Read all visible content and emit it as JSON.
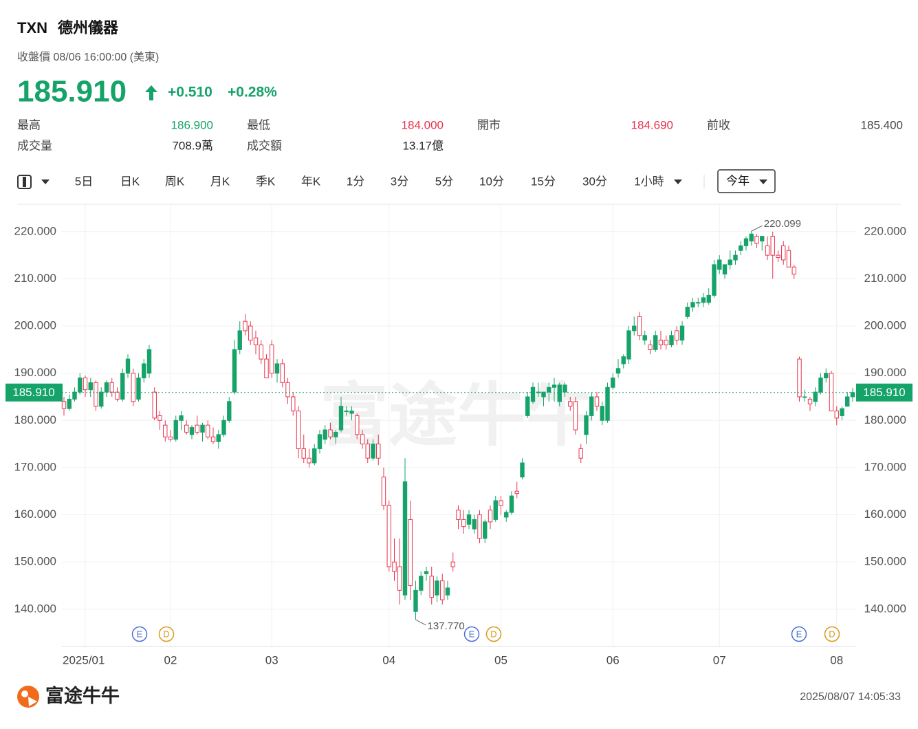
{
  "header": {
    "ticker": "TXN",
    "name": "德州儀器",
    "status": "收盤價 08/06 16:00:00 (美東)",
    "price": "185.910",
    "change": "+0.510",
    "change_pct": "+0.28%"
  },
  "stats": [
    {
      "label": "最高",
      "value": "186.900",
      "color": "#16a36a"
    },
    {
      "label": "最低",
      "value": "184.000",
      "color": "#e8344d"
    },
    {
      "label": "開市",
      "value": "184.690",
      "color": "#e8344d"
    },
    {
      "label": "前收",
      "value": "185.400",
      "color": "#444444"
    },
    {
      "label": "成交量",
      "value": "708.9萬",
      "color": "#222222"
    },
    {
      "label": "成交額",
      "value": "13.17億",
      "color": "#222222"
    }
  ],
  "toolbar": {
    "items": [
      "5日",
      "日K",
      "周K",
      "月K",
      "季K",
      "年K",
      "1分",
      "3分",
      "5分",
      "10分",
      "15分",
      "30分",
      "1小時"
    ],
    "selected": "今年"
  },
  "chart_data": {
    "type": "candlestick",
    "up_color": "#16a36a",
    "down_color": "#e8344d",
    "grid": true,
    "categories": [
      null,
      null,
      null,
      null,
      "2025/01",
      null,
      null,
      null,
      null,
      null,
      null,
      null,
      null,
      null,
      null,
      null,
      null,
      null,
      null,
      null,
      "02",
      null,
      null,
      null,
      null,
      null,
      null,
      null,
      null,
      null,
      null,
      null,
      null,
      null,
      null,
      null,
      null,
      null,
      null,
      "03",
      null,
      null,
      null,
      null,
      null,
      null,
      null,
      null,
      null,
      null,
      null,
      null,
      null,
      null,
      null,
      null,
      null,
      null,
      null,
      null,
      null,
      "04",
      null,
      null,
      null,
      null,
      null,
      null,
      null,
      null,
      null,
      null,
      null,
      null,
      null,
      null,
      null,
      null,
      null,
      null,
      null,
      null,
      "05",
      null,
      null,
      null,
      null,
      null,
      null,
      null,
      null,
      null,
      null,
      null,
      null,
      null,
      null,
      null,
      null,
      null,
      null,
      null,
      null,
      "06",
      null,
      null,
      null,
      null,
      null,
      null,
      null,
      null,
      null,
      null,
      null,
      null,
      null,
      null,
      null,
      null,
      null,
      null,
      null,
      "07",
      null,
      null,
      null,
      null,
      null,
      null,
      null,
      null,
      null,
      null,
      null,
      null,
      null,
      null,
      null,
      null,
      null,
      null,
      null,
      null,
      null,
      "08",
      null,
      null,
      null
    ],
    "candles": [
      [
        184,
        185,
        181,
        182.5
      ],
      [
        182.5,
        185.5,
        182,
        184.5
      ],
      [
        184.5,
        187,
        184,
        186
      ],
      [
        186,
        190,
        185.5,
        189
      ],
      [
        189,
        189.5,
        185,
        186.5
      ],
      [
        186.5,
        189,
        185,
        188
      ],
      [
        188,
        188.5,
        182,
        183
      ],
      [
        183,
        187,
        182.5,
        186
      ],
      [
        186,
        188.5,
        185,
        188
      ],
      [
        188,
        189,
        185,
        186
      ],
      [
        186,
        187,
        184,
        184.5
      ],
      [
        184.5,
        191,
        184,
        190
      ],
      [
        190,
        194,
        189,
        193
      ],
      [
        190,
        191,
        183,
        184
      ],
      [
        184.5,
        190,
        184,
        189
      ],
      [
        189,
        193,
        188,
        192
      ],
      [
        190,
        196,
        189,
        195
      ],
      [
        186,
        187,
        180,
        180.5
      ],
      [
        181,
        182,
        178,
        180
      ],
      [
        179,
        180,
        175.5,
        176.5
      ],
      [
        176.5,
        178,
        175.5,
        176
      ],
      [
        176,
        181,
        175.5,
        180
      ],
      [
        180,
        182,
        178,
        181
      ],
      [
        179,
        180,
        177,
        177.5
      ],
      [
        177,
        179,
        176,
        178.5
      ],
      [
        179,
        181,
        177,
        177.5
      ],
      [
        177.5,
        179.5,
        175.5,
        179
      ],
      [
        179,
        180,
        176,
        176.5
      ],
      [
        176.5,
        178.5,
        175,
        175.5
      ],
      [
        175.5,
        178,
        174,
        177
      ],
      [
        177,
        181,
        176.5,
        180
      ],
      [
        180,
        185,
        179.5,
        184
      ],
      [
        186,
        197,
        185.5,
        195
      ],
      [
        195,
        201,
        194,
        199
      ],
      [
        201,
        202.5,
        198,
        199
      ],
      [
        200,
        201,
        196,
        197
      ],
      [
        197.5,
        199,
        194,
        196
      ],
      [
        196,
        197,
        192,
        193
      ],
      [
        193,
        194,
        189,
        189
      ],
      [
        196,
        197,
        189,
        190
      ],
      [
        190,
        193,
        188,
        192
      ],
      [
        192,
        193,
        187,
        188
      ],
      [
        188,
        189,
        183.5,
        185
      ],
      [
        185,
        186,
        181,
        182
      ],
      [
        182,
        183,
        172,
        174
      ],
      [
        174,
        177,
        171,
        172
      ],
      [
        172,
        174,
        170,
        171
      ],
      [
        171,
        175,
        170.5,
        174
      ],
      [
        174,
        178,
        173,
        177
      ],
      [
        176,
        179,
        175,
        178
      ],
      [
        178,
        179.5,
        176,
        176.5
      ],
      [
        176.5,
        178,
        175,
        177.5
      ],
      [
        178,
        185,
        177.5,
        183
      ],
      [
        182,
        183,
        181,
        182
      ],
      [
        181.5,
        183,
        180,
        182
      ],
      [
        181,
        181.5,
        176,
        177
      ],
      [
        177,
        178,
        174,
        175
      ],
      [
        175,
        176,
        171,
        172
      ],
      [
        172,
        176,
        171.5,
        175
      ],
      [
        175,
        177,
        170.5,
        172
      ],
      [
        168,
        170,
        161,
        162
      ],
      [
        162,
        163,
        148,
        149
      ],
      [
        150,
        155,
        146,
        148
      ],
      [
        149,
        155,
        141,
        144
      ],
      [
        143,
        172,
        142,
        167
      ],
      [
        159,
        163,
        142,
        145
      ],
      [
        139.5,
        146,
        137.77,
        144
      ],
      [
        144,
        148,
        143,
        147
      ],
      [
        147.5,
        149,
        146,
        148
      ],
      [
        147,
        149,
        141,
        142.5
      ],
      [
        143,
        147,
        141.5,
        146
      ],
      [
        146,
        147.5,
        141,
        142
      ],
      [
        143,
        146,
        142,
        144.5
      ],
      [
        150,
        152,
        148,
        149
      ],
      [
        161,
        162,
        157,
        159
      ],
      [
        159,
        161,
        156,
        157.5
      ],
      [
        158,
        161,
        157,
        160
      ],
      [
        157,
        160,
        156,
        159
      ],
      [
        160,
        161,
        154,
        155
      ],
      [
        155,
        159,
        154,
        158.5
      ],
      [
        161,
        162,
        157,
        158.5
      ],
      [
        159,
        164,
        158.5,
        163
      ],
      [
        163,
        164,
        160,
        162
      ],
      [
        159.5,
        161,
        158.5,
        160.5
      ],
      [
        160.5,
        165,
        160,
        164
      ],
      [
        165,
        167,
        163.5,
        164.5
      ],
      [
        168,
        172,
        167.5,
        171
      ],
      [
        181,
        186,
        180.5,
        185
      ],
      [
        184,
        188,
        183.5,
        187
      ],
      [
        186,
        188,
        185,
        186
      ],
      [
        185,
        186,
        183,
        186
      ],
      [
        186,
        188,
        184,
        187
      ],
      [
        187,
        189,
        184,
        187.5
      ],
      [
        184,
        188,
        183,
        187.5
      ],
      [
        186,
        188,
        185,
        187.5
      ],
      [
        184,
        185,
        182,
        183
      ],
      [
        184,
        185,
        177,
        178
      ],
      [
        174,
        175,
        171,
        172
      ],
      [
        177,
        182,
        175,
        181
      ],
      [
        181,
        186,
        180,
        185
      ],
      [
        185,
        186,
        182,
        183
      ],
      [
        180,
        184,
        179,
        183
      ],
      [
        180,
        188,
        179.5,
        187
      ],
      [
        187,
        190,
        186.5,
        189
      ],
      [
        190,
        193,
        189,
        191
      ],
      [
        192,
        194,
        191,
        193.5
      ],
      [
        193,
        200,
        192,
        199
      ],
      [
        199,
        202,
        198,
        200
      ],
      [
        202,
        203,
        197,
        198
      ],
      [
        197,
        199,
        196,
        198
      ],
      [
        196,
        197,
        194,
        195
      ],
      [
        195,
        199,
        194.5,
        198
      ],
      [
        197,
        199,
        195,
        196
      ],
      [
        197,
        198,
        195,
        196
      ],
      [
        196,
        199,
        195.5,
        198
      ],
      [
        199,
        200,
        196,
        197
      ],
      [
        197,
        201,
        196,
        200
      ],
      [
        202,
        205,
        201.5,
        204
      ],
      [
        204,
        206,
        203,
        205
      ],
      [
        205,
        206,
        204,
        205
      ],
      [
        205,
        207,
        204,
        206
      ],
      [
        205,
        208,
        204.5,
        206.5
      ],
      [
        206.5,
        214,
        206,
        213
      ],
      [
        212,
        215,
        211,
        214
      ],
      [
        211,
        213,
        210,
        213
      ],
      [
        213,
        216,
        212,
        214
      ],
      [
        214,
        216,
        213,
        215
      ],
      [
        216,
        218,
        215,
        217
      ],
      [
        217,
        219,
        216,
        218.5
      ],
      [
        218,
        220.099,
        217,
        219.5
      ],
      [
        219,
        219.5,
        216.5,
        217.5
      ],
      [
        218,
        219,
        216,
        219
      ],
      [
        217,
        219,
        214,
        215
      ],
      [
        219,
        220,
        210,
        215
      ],
      [
        215,
        216,
        213.5,
        214.5
      ],
      [
        217,
        218,
        213,
        214
      ],
      [
        216,
        217,
        213,
        212.5
      ],
      [
        212.5,
        213,
        210,
        211
      ],
      [
        193,
        193.5,
        184,
        185
      ],
      [
        185,
        186.5,
        184,
        185
      ],
      [
        184.5,
        185,
        182,
        183.5
      ],
      [
        184,
        187,
        183,
        186
      ],
      [
        186,
        190,
        185.5,
        189
      ],
      [
        189,
        191,
        188,
        190
      ],
      [
        190,
        190.5,
        182,
        182
      ],
      [
        182,
        183,
        179,
        180.5
      ],
      [
        181,
        183,
        180,
        182.5
      ],
      [
        183,
        186,
        183,
        185
      ],
      [
        185,
        186.9,
        184,
        185.91
      ]
    ],
    "ylim": [
      132.1,
      225.8
    ],
    "yticks": [
      {
        "value": 140,
        "label": "140.000"
      },
      {
        "value": 150,
        "label": "150.000"
      },
      {
        "value": 160,
        "label": "160.000"
      },
      {
        "value": 170,
        "label": "170.000"
      },
      {
        "value": 180,
        "label": "180.000"
      },
      {
        "value": 190,
        "label": "190.000"
      },
      {
        "value": 200,
        "label": "200.000"
      },
      {
        "value": 210,
        "label": "210.000"
      },
      {
        "value": 220,
        "label": "220.000"
      }
    ],
    "last_price": {
      "value": 185.91,
      "label": "185.910"
    },
    "high_annotation": {
      "value": 220.099,
      "label": "220.099"
    },
    "low_annotation": {
      "value": 137.77,
      "label": "137.770"
    },
    "events": [
      {
        "label": "E",
        "color": "#4a6fd8"
      },
      {
        "label": "D",
        "color": "#d99a1a"
      },
      {
        "label": "E",
        "color": "#4a6fd8"
      },
      {
        "label": "D",
        "color": "#d99a1a"
      },
      {
        "label": "E",
        "color": "#4a6fd8"
      },
      {
        "label": "D",
        "color": "#d99a1a"
      }
    ],
    "watermark": "富途牛牛"
  },
  "footer": {
    "brand": "富途牛牛",
    "timestamp": "2025/08/07 14:05:33"
  }
}
